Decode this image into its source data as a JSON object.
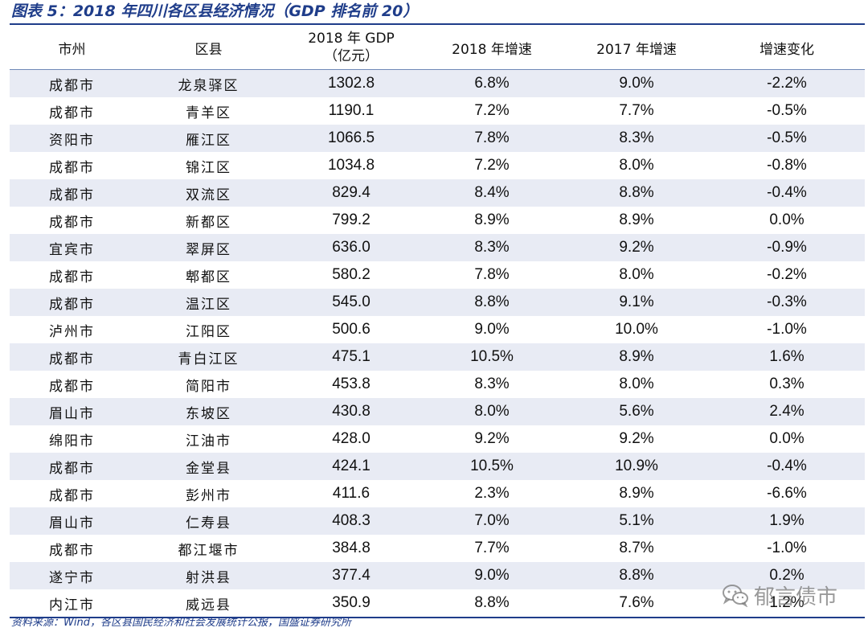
{
  "title": "图表 5：2018 年四川各区县经济情况（GDP 排名前 20）",
  "headers": {
    "city": "市州",
    "county": "区县",
    "gdp_line1": "2018 年 GDP",
    "gdp_line2": "（亿元）",
    "growth_2018": "2018 年增速",
    "growth_2017": "2017 年增速",
    "change": "增速变化"
  },
  "rows": [
    {
      "city": "成都市",
      "county": "龙泉驿区",
      "gdp": "1302.8",
      "g2018": "6.8%",
      "g2017": "9.0%",
      "change": "-2.2%"
    },
    {
      "city": "成都市",
      "county": "青羊区",
      "gdp": "1190.1",
      "g2018": "7.2%",
      "g2017": "7.7%",
      "change": "-0.5%"
    },
    {
      "city": "资阳市",
      "county": "雁江区",
      "gdp": "1066.5",
      "g2018": "7.8%",
      "g2017": "8.3%",
      "change": "-0.5%"
    },
    {
      "city": "成都市",
      "county": "锦江区",
      "gdp": "1034.8",
      "g2018": "7.2%",
      "g2017": "8.0%",
      "change": "-0.8%"
    },
    {
      "city": "成都市",
      "county": "双流区",
      "gdp": "829.4",
      "g2018": "8.4%",
      "g2017": "8.8%",
      "change": "-0.4%"
    },
    {
      "city": "成都市",
      "county": "新都区",
      "gdp": "799.2",
      "g2018": "8.9%",
      "g2017": "8.9%",
      "change": "0.0%"
    },
    {
      "city": "宜宾市",
      "county": "翠屏区",
      "gdp": "636.0",
      "g2018": "8.3%",
      "g2017": "9.2%",
      "change": "-0.9%"
    },
    {
      "city": "成都市",
      "county": "郫都区",
      "gdp": "580.2",
      "g2018": "7.8%",
      "g2017": "8.0%",
      "change": "-0.2%"
    },
    {
      "city": "成都市",
      "county": "温江区",
      "gdp": "545.0",
      "g2018": "8.8%",
      "g2017": "9.1%",
      "change": "-0.3%"
    },
    {
      "city": "泸州市",
      "county": "江阳区",
      "gdp": "500.6",
      "g2018": "9.0%",
      "g2017": "10.0%",
      "change": "-1.0%"
    },
    {
      "city": "成都市",
      "county": "青白江区",
      "gdp": "475.1",
      "g2018": "10.5%",
      "g2017": "8.9%",
      "change": "1.6%"
    },
    {
      "city": "成都市",
      "county": "简阳市",
      "gdp": "453.8",
      "g2018": "8.3%",
      "g2017": "8.0%",
      "change": "0.3%"
    },
    {
      "city": "眉山市",
      "county": "东坡区",
      "gdp": "430.8",
      "g2018": "8.0%",
      "g2017": "5.6%",
      "change": "2.4%"
    },
    {
      "city": "绵阳市",
      "county": "江油市",
      "gdp": "428.0",
      "g2018": "9.2%",
      "g2017": "9.2%",
      "change": "0.0%"
    },
    {
      "city": "成都市",
      "county": "金堂县",
      "gdp": "424.1",
      "g2018": "10.5%",
      "g2017": "10.9%",
      "change": "-0.4%"
    },
    {
      "city": "成都市",
      "county": "彭州市",
      "gdp": "411.6",
      "g2018": "2.3%",
      "g2017": "8.9%",
      "change": "-6.6%"
    },
    {
      "city": "眉山市",
      "county": "仁寿县",
      "gdp": "408.3",
      "g2018": "7.0%",
      "g2017": "5.1%",
      "change": "1.9%"
    },
    {
      "city": "成都市",
      "county": "都江堰市",
      "gdp": "384.8",
      "g2018": "7.7%",
      "g2017": "8.7%",
      "change": "-1.0%"
    },
    {
      "city": "遂宁市",
      "county": "射洪县",
      "gdp": "377.4",
      "g2018": "9.0%",
      "g2017": "8.8%",
      "change": "0.2%"
    },
    {
      "city": "内江市",
      "county": "威远县",
      "gdp": "350.9",
      "g2018": "8.8%",
      "g2017": "7.6%",
      "change": "1.2%"
    }
  ],
  "source": "资料来源：Wind，各区县国民经济和社会发展统计公报，国盛证券研究所",
  "watermark": "郁言债市",
  "watermark_icon": "wechat-icon",
  "colors": {
    "accent": "#1f3d8a",
    "row_stripe": "#e8ebf4"
  }
}
